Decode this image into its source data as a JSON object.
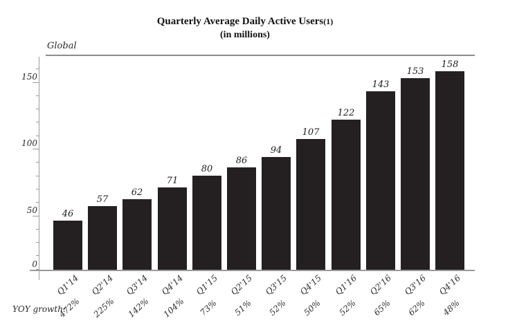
{
  "header": {
    "title": "Quarterly Average Daily Active Users",
    "title_footnote": "(1)",
    "subtitle": "(in millions)"
  },
  "chart_data": {
    "type": "bar",
    "title": "Quarterly Average Daily Active Users(1)",
    "subtitle": "(in millions)",
    "region_label": "Global",
    "categories": [
      "Q1'14",
      "Q2'14",
      "Q3'14",
      "Q4'14",
      "Q1'15",
      "Q2'15",
      "Q3'15",
      "Q4'15",
      "Q1'16",
      "Q2'16",
      "Q3'16",
      "Q4'16"
    ],
    "values": [
      46,
      57,
      62,
      71,
      80,
      86,
      94,
      107,
      122,
      143,
      153,
      158
    ],
    "yoy_growth_label": "YOY growth:",
    "yoy_growth": [
      "472%",
      "225%",
      "142%",
      "104%",
      "73%",
      "51%",
      "52%",
      "50%",
      "52%",
      "65%",
      "62%",
      "48%"
    ],
    "ylabel": "",
    "xlabel": "",
    "y_major_ticks": [
      0,
      50,
      100,
      150
    ],
    "y_minor_tick_step": 10,
    "ylim": [
      0,
      165
    ],
    "grid": false,
    "legend_position": "top-left",
    "bar_color": "#242021",
    "axis_color": "#9a9a9a",
    "text_color": "#1f1f1f"
  }
}
